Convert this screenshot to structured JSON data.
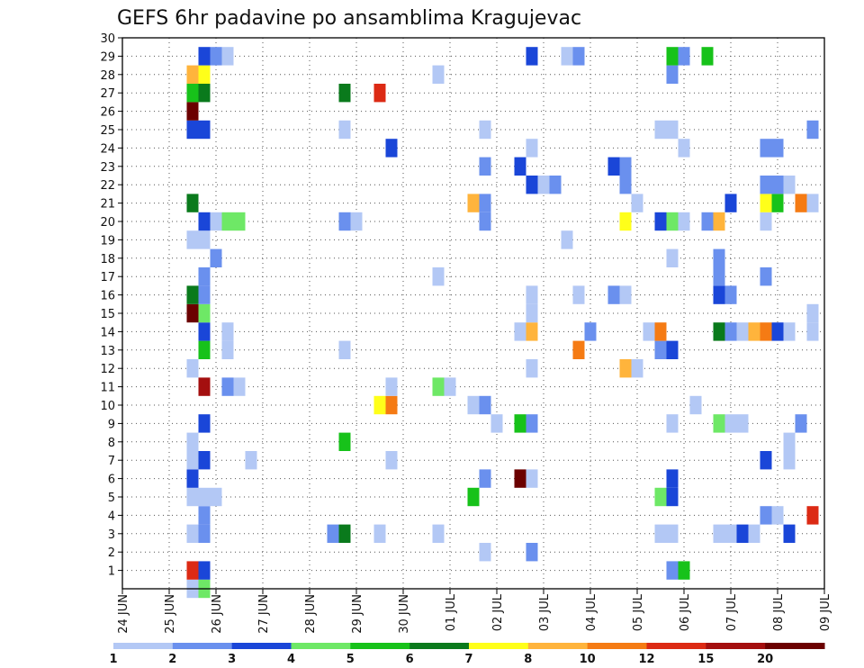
{
  "chart_data": {
    "type": "heatmap",
    "title": "GEFS 6hr padavine po ansamblima Kragujevac",
    "xlabel": "",
    "ylabel": "",
    "x_ticks": [
      "24 JUN",
      "25 JUN",
      "26 JUN",
      "27 JUN",
      "28 JUN",
      "29 JUN",
      "30 JUN",
      "01 JUL",
      "02 JUL",
      "03 JUL",
      "04 JUL",
      "05 JUL",
      "06 JUL",
      "07 JUL",
      "08 JUL",
      "09 JUL"
    ],
    "x_range": [
      0,
      15
    ],
    "y_ticks": [
      1,
      2,
      3,
      4,
      5,
      6,
      7,
      8,
      9,
      10,
      11,
      12,
      13,
      14,
      15,
      16,
      17,
      18,
      19,
      20,
      21,
      22,
      23,
      24,
      25,
      26,
      27,
      28,
      29,
      30
    ],
    "y_range": [
      0,
      30
    ],
    "grid": true,
    "colorbar": {
      "labels": [
        "1",
        "2",
        "3",
        "4",
        "5",
        "6",
        "7",
        "8",
        "10",
        "12",
        "15",
        "20"
      ],
      "colors": [
        "#b3c8f5",
        "#6a90ee",
        "#1a46d8",
        "#6ee866",
        "#17c21a",
        "#0a7a1c",
        "#ffff1a",
        "#ffb43c",
        "#f57b14",
        "#dc2a14",
        "#a40f0f",
        "#6b0000"
      ]
    },
    "cells": [
      {
        "t": 1.5,
        "m": 0,
        "c": 0
      },
      {
        "t": 1.75,
        "m": 0,
        "c": 3
      },
      {
        "t": 1.5,
        "m": 1,
        "c": 9
      },
      {
        "t": 1.75,
        "m": 1,
        "c": 2
      },
      {
        "t": 11.75,
        "m": 1,
        "c": 1
      },
      {
        "t": 12.0,
        "m": 1,
        "c": 4
      },
      {
        "t": 7.75,
        "m": 2,
        "c": 0
      },
      {
        "t": 8.75,
        "m": 2,
        "c": 1
      },
      {
        "t": 1.5,
        "m": 3,
        "c": 0
      },
      {
        "t": 1.75,
        "m": 3,
        "c": 1
      },
      {
        "t": 4.5,
        "m": 3,
        "c": 1
      },
      {
        "t": 4.75,
        "m": 3,
        "c": 5
      },
      {
        "t": 5.5,
        "m": 3,
        "c": 0
      },
      {
        "t": 6.75,
        "m": 3,
        "c": 0
      },
      {
        "t": 11.5,
        "m": 3,
        "c": 0
      },
      {
        "t": 11.75,
        "m": 3,
        "c": 0
      },
      {
        "t": 12.75,
        "m": 3,
        "c": 0
      },
      {
        "t": 13.0,
        "m": 3,
        "c": 0
      },
      {
        "t": 13.25,
        "m": 3,
        "c": 2
      },
      {
        "t": 13.5,
        "m": 3,
        "c": 0
      },
      {
        "t": 14.25,
        "m": 3,
        "c": 2
      },
      {
        "t": 1.75,
        "m": 4,
        "c": 1
      },
      {
        "t": 13.75,
        "m": 4,
        "c": 1
      },
      {
        "t": 14.0,
        "m": 4,
        "c": 0
      },
      {
        "t": 14.75,
        "m": 4,
        "c": 9
      },
      {
        "t": 1.5,
        "m": 5,
        "c": 0
      },
      {
        "t": 1.75,
        "m": 5,
        "c": 0
      },
      {
        "t": 2.0,
        "m": 5,
        "c": 0
      },
      {
        "t": 7.5,
        "m": 5,
        "c": 4
      },
      {
        "t": 11.5,
        "m": 5,
        "c": 3
      },
      {
        "t": 11.75,
        "m": 5,
        "c": 2
      },
      {
        "t": 1.5,
        "m": 6,
        "c": 2
      },
      {
        "t": 7.75,
        "m": 6,
        "c": 1
      },
      {
        "t": 8.5,
        "m": 6,
        "c": 11
      },
      {
        "t": 8.75,
        "m": 6,
        "c": 0
      },
      {
        "t": 11.75,
        "m": 6,
        "c": 2
      },
      {
        "t": 1.5,
        "m": 7,
        "c": 0
      },
      {
        "t": 1.75,
        "m": 7,
        "c": 2
      },
      {
        "t": 2.75,
        "m": 7,
        "c": 0
      },
      {
        "t": 5.75,
        "m": 7,
        "c": 0
      },
      {
        "t": 13.75,
        "m": 7,
        "c": 2
      },
      {
        "t": 14.25,
        "m": 7,
        "c": 0
      },
      {
        "t": 1.5,
        "m": 8,
        "c": 0
      },
      {
        "t": 4.75,
        "m": 8,
        "c": 4
      },
      {
        "t": 14.25,
        "m": 8,
        "c": 0
      },
      {
        "t": 1.75,
        "m": 9,
        "c": 2
      },
      {
        "t": 8.0,
        "m": 9,
        "c": 0
      },
      {
        "t": 8.5,
        "m": 9,
        "c": 4
      },
      {
        "t": 8.75,
        "m": 9,
        "c": 1
      },
      {
        "t": 11.75,
        "m": 9,
        "c": 0
      },
      {
        "t": 12.75,
        "m": 9,
        "c": 3
      },
      {
        "t": 13.0,
        "m": 9,
        "c": 0
      },
      {
        "t": 13.25,
        "m": 9,
        "c": 0
      },
      {
        "t": 14.5,
        "m": 9,
        "c": 1
      },
      {
        "t": 5.5,
        "m": 10,
        "c": 6
      },
      {
        "t": 5.75,
        "m": 10,
        "c": 8
      },
      {
        "t": 7.5,
        "m": 10,
        "c": 0
      },
      {
        "t": 7.75,
        "m": 10,
        "c": 1
      },
      {
        "t": 12.25,
        "m": 10,
        "c": 0
      },
      {
        "t": 1.75,
        "m": 11,
        "c": 10
      },
      {
        "t": 2.25,
        "m": 11,
        "c": 1
      },
      {
        "t": 2.5,
        "m": 11,
        "c": 0
      },
      {
        "t": 5.75,
        "m": 11,
        "c": 0
      },
      {
        "t": 6.75,
        "m": 11,
        "c": 3
      },
      {
        "t": 7.0,
        "m": 11,
        "c": 0
      },
      {
        "t": 1.5,
        "m": 12,
        "c": 0
      },
      {
        "t": 8.75,
        "m": 12,
        "c": 0
      },
      {
        "t": 10.75,
        "m": 12,
        "c": 7
      },
      {
        "t": 11.0,
        "m": 12,
        "c": 0
      },
      {
        "t": 1.75,
        "m": 13,
        "c": 4
      },
      {
        "t": 2.25,
        "m": 13,
        "c": 0
      },
      {
        "t": 4.75,
        "m": 13,
        "c": 0
      },
      {
        "t": 9.75,
        "m": 13,
        "c": 8
      },
      {
        "t": 11.5,
        "m": 13,
        "c": 1
      },
      {
        "t": 11.75,
        "m": 13,
        "c": 2
      },
      {
        "t": 1.75,
        "m": 14,
        "c": 2
      },
      {
        "t": 2.25,
        "m": 14,
        "c": 0
      },
      {
        "t": 8.5,
        "m": 14,
        "c": 0
      },
      {
        "t": 8.75,
        "m": 14,
        "c": 7
      },
      {
        "t": 10.0,
        "m": 14,
        "c": 1
      },
      {
        "t": 11.25,
        "m": 14,
        "c": 0
      },
      {
        "t": 11.5,
        "m": 14,
        "c": 8
      },
      {
        "t": 12.75,
        "m": 14,
        "c": 5
      },
      {
        "t": 13.0,
        "m": 14,
        "c": 1
      },
      {
        "t": 13.25,
        "m": 14,
        "c": 0
      },
      {
        "t": 13.5,
        "m": 14,
        "c": 7
      },
      {
        "t": 13.75,
        "m": 14,
        "c": 8
      },
      {
        "t": 14.0,
        "m": 14,
        "c": 2
      },
      {
        "t": 14.25,
        "m": 14,
        "c": 0
      },
      {
        "t": 14.75,
        "m": 14,
        "c": 0
      },
      {
        "t": 1.5,
        "m": 15,
        "c": 11
      },
      {
        "t": 1.75,
        "m": 15,
        "c": 3
      },
      {
        "t": 8.75,
        "m": 15,
        "c": 0
      },
      {
        "t": 14.75,
        "m": 15,
        "c": 0
      },
      {
        "t": 1.5,
        "m": 16,
        "c": 5
      },
      {
        "t": 1.75,
        "m": 16,
        "c": 1
      },
      {
        "t": 8.75,
        "m": 16,
        "c": 0
      },
      {
        "t": 9.75,
        "m": 16,
        "c": 0
      },
      {
        "t": 10.5,
        "m": 16,
        "c": 1
      },
      {
        "t": 10.75,
        "m": 16,
        "c": 0
      },
      {
        "t": 12.75,
        "m": 16,
        "c": 2
      },
      {
        "t": 13.0,
        "m": 16,
        "c": 1
      },
      {
        "t": 1.75,
        "m": 17,
        "c": 1
      },
      {
        "t": 6.75,
        "m": 17,
        "c": 0
      },
      {
        "t": 12.75,
        "m": 17,
        "c": 1
      },
      {
        "t": 13.75,
        "m": 17,
        "c": 1
      },
      {
        "t": 2.0,
        "m": 18,
        "c": 1
      },
      {
        "t": 11.75,
        "m": 18,
        "c": 0
      },
      {
        "t": 12.75,
        "m": 18,
        "c": 1
      },
      {
        "t": 1.5,
        "m": 19,
        "c": 0
      },
      {
        "t": 1.75,
        "m": 19,
        "c": 0
      },
      {
        "t": 9.5,
        "m": 19,
        "c": 0
      },
      {
        "t": 1.75,
        "m": 20,
        "c": 2
      },
      {
        "t": 2.0,
        "m": 20,
        "c": 0
      },
      {
        "t": 2.25,
        "m": 20,
        "c": 3
      },
      {
        "t": 2.5,
        "m": 20,
        "c": 3
      },
      {
        "t": 4.75,
        "m": 20,
        "c": 1
      },
      {
        "t": 5.0,
        "m": 20,
        "c": 0
      },
      {
        "t": 7.75,
        "m": 20,
        "c": 1
      },
      {
        "t": 10.75,
        "m": 20,
        "c": 6
      },
      {
        "t": 11.5,
        "m": 20,
        "c": 2
      },
      {
        "t": 11.75,
        "m": 20,
        "c": 3
      },
      {
        "t": 12.0,
        "m": 20,
        "c": 0
      },
      {
        "t": 12.5,
        "m": 20,
        "c": 1
      },
      {
        "t": 12.75,
        "m": 20,
        "c": 7
      },
      {
        "t": 13.75,
        "m": 20,
        "c": 0
      },
      {
        "t": 1.5,
        "m": 21,
        "c": 5
      },
      {
        "t": 7.5,
        "m": 21,
        "c": 7
      },
      {
        "t": 7.75,
        "m": 21,
        "c": 1
      },
      {
        "t": 11.0,
        "m": 21,
        "c": 0
      },
      {
        "t": 13.0,
        "m": 21,
        "c": 2
      },
      {
        "t": 13.75,
        "m": 21,
        "c": 6
      },
      {
        "t": 14.0,
        "m": 21,
        "c": 4
      },
      {
        "t": 14.5,
        "m": 21,
        "c": 8
      },
      {
        "t": 14.75,
        "m": 21,
        "c": 0
      },
      {
        "t": 8.75,
        "m": 22,
        "c": 2
      },
      {
        "t": 9.0,
        "m": 22,
        "c": 0
      },
      {
        "t": 9.25,
        "m": 22,
        "c": 1
      },
      {
        "t": 10.75,
        "m": 22,
        "c": 1
      },
      {
        "t": 13.75,
        "m": 22,
        "c": 1
      },
      {
        "t": 14.0,
        "m": 22,
        "c": 1
      },
      {
        "t": 14.25,
        "m": 22,
        "c": 0
      },
      {
        "t": 7.75,
        "m": 23,
        "c": 1
      },
      {
        "t": 8.5,
        "m": 23,
        "c": 2
      },
      {
        "t": 10.5,
        "m": 23,
        "c": 2
      },
      {
        "t": 10.75,
        "m": 23,
        "c": 1
      },
      {
        "t": 5.75,
        "m": 24,
        "c": 2
      },
      {
        "t": 8.75,
        "m": 24,
        "c": 0
      },
      {
        "t": 12.0,
        "m": 24,
        "c": 0
      },
      {
        "t": 13.75,
        "m": 24,
        "c": 1
      },
      {
        "t": 14.0,
        "m": 24,
        "c": 1
      },
      {
        "t": 1.5,
        "m": 25,
        "c": 2
      },
      {
        "t": 1.75,
        "m": 25,
        "c": 2
      },
      {
        "t": 4.75,
        "m": 25,
        "c": 0
      },
      {
        "t": 7.75,
        "m": 25,
        "c": 0
      },
      {
        "t": 11.5,
        "m": 25,
        "c": 0
      },
      {
        "t": 11.75,
        "m": 25,
        "c": 0
      },
      {
        "t": 14.75,
        "m": 25,
        "c": 1
      },
      {
        "t": 1.5,
        "m": 26,
        "c": 11
      },
      {
        "t": 1.5,
        "m": 27,
        "c": 4
      },
      {
        "t": 1.75,
        "m": 27,
        "c": 5
      },
      {
        "t": 4.75,
        "m": 27,
        "c": 5
      },
      {
        "t": 5.5,
        "m": 27,
        "c": 9
      },
      {
        "t": 1.5,
        "m": 28,
        "c": 7
      },
      {
        "t": 1.75,
        "m": 28,
        "c": 6
      },
      {
        "t": 6.75,
        "m": 28,
        "c": 0
      },
      {
        "t": 11.75,
        "m": 28,
        "c": 1
      },
      {
        "t": 1.75,
        "m": 29,
        "c": 2
      },
      {
        "t": 2.0,
        "m": 29,
        "c": 1
      },
      {
        "t": 2.25,
        "m": 29,
        "c": 0
      },
      {
        "t": 8.75,
        "m": 29,
        "c": 2
      },
      {
        "t": 9.5,
        "m": 29,
        "c": 0
      },
      {
        "t": 9.75,
        "m": 29,
        "c": 1
      },
      {
        "t": 11.75,
        "m": 29,
        "c": 4
      },
      {
        "t": 12.0,
        "m": 29,
        "c": 1
      },
      {
        "t": 12.5,
        "m": 29,
        "c": 4
      }
    ]
  }
}
